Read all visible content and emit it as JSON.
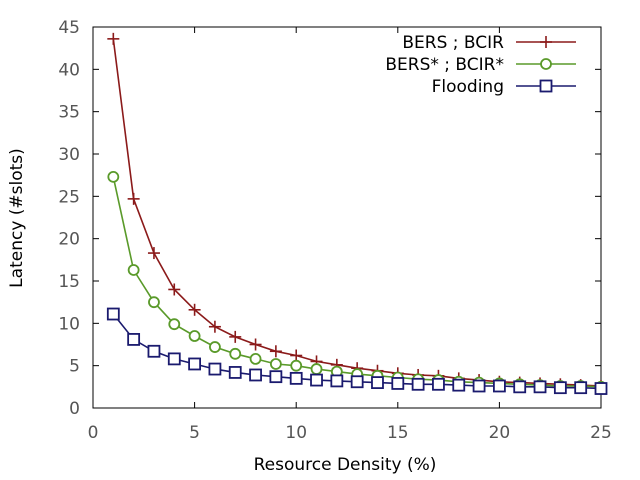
{
  "chart_data": {
    "type": "line",
    "title": "",
    "xlabel": "Resource Density (%)",
    "ylabel": "Latency (#slots)",
    "xlim": [
      0,
      25
    ],
    "ylim": [
      0,
      45
    ],
    "x_ticks": [
      "0",
      "5",
      "10",
      "15",
      "20",
      "25"
    ],
    "y_ticks": [
      "0",
      "5",
      "10",
      "15",
      "20",
      "25",
      "30",
      "35",
      "40",
      "45"
    ],
    "grid": false,
    "legend_position": "top-right",
    "x": [
      1,
      2,
      3,
      4,
      5,
      6,
      7,
      8,
      9,
      10,
      11,
      12,
      13,
      14,
      15,
      16,
      17,
      18,
      19,
      20,
      21,
      22,
      23,
      24,
      25
    ],
    "series": [
      {
        "name": "BERS ; BCIR",
        "color": "#8b1a1a",
        "marker": "plus",
        "values": [
          43.6,
          24.7,
          18.3,
          14.0,
          11.6,
          9.6,
          8.4,
          7.5,
          6.7,
          6.2,
          5.5,
          5.1,
          4.7,
          4.4,
          4.1,
          3.9,
          3.8,
          3.5,
          3.3,
          3.1,
          3.0,
          2.9,
          2.8,
          2.7,
          2.6
        ]
      },
      {
        "name": "BERS* ; BCIR*",
        "color": "#5a9a2a",
        "marker": "circle",
        "values": [
          27.3,
          16.3,
          12.5,
          9.9,
          8.5,
          7.2,
          6.4,
          5.8,
          5.2,
          5.0,
          4.6,
          4.3,
          4.0,
          3.8,
          3.6,
          3.4,
          3.3,
          3.1,
          3.0,
          2.9,
          2.8,
          2.7,
          2.6,
          2.6,
          2.5
        ]
      },
      {
        "name": "Flooding",
        "color": "#1a1a6e",
        "marker": "square",
        "values": [
          11.1,
          8.1,
          6.7,
          5.8,
          5.2,
          4.6,
          4.2,
          3.9,
          3.7,
          3.5,
          3.3,
          3.2,
          3.1,
          3.0,
          2.9,
          2.8,
          2.8,
          2.7,
          2.6,
          2.6,
          2.5,
          2.5,
          2.4,
          2.4,
          2.3
        ]
      }
    ]
  }
}
